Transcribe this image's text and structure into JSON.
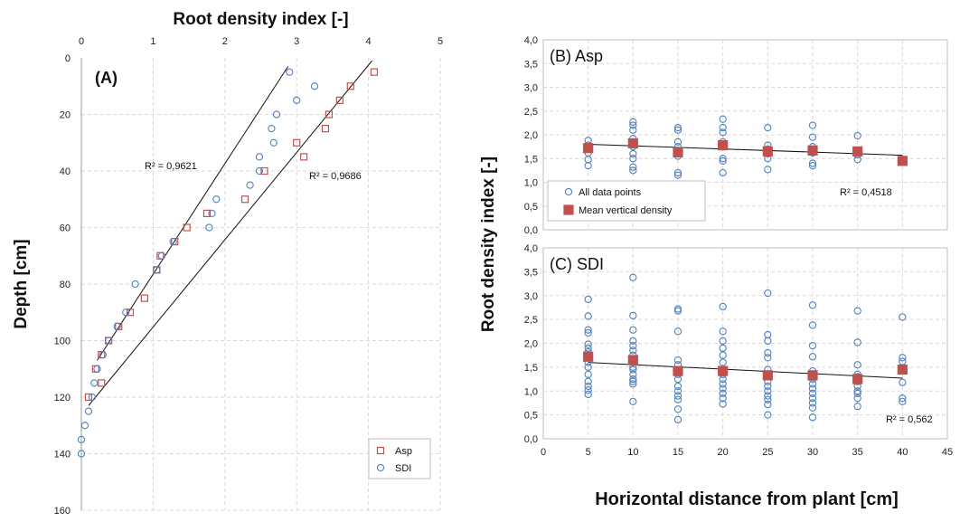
{
  "chart_data": [
    {
      "id": "A",
      "type": "scatter",
      "panel_label": "(A)",
      "xlabel": "Root density index [-]",
      "ylabel": "Depth [cm]",
      "xlim": [
        0,
        5
      ],
      "ylim": [
        0,
        160
      ],
      "y_inverted": true,
      "x_axis_position": "top",
      "x_ticks": [
        0,
        1,
        2,
        3,
        4,
        5
      ],
      "y_ticks": [
        0,
        20,
        40,
        60,
        80,
        100,
        120,
        140,
        160
      ],
      "grid": true,
      "legend_position": "bottom-right",
      "series": [
        {
          "name": "Asp",
          "marker": "square",
          "color": "#c0504d",
          "x": [
            4.08,
            3.75,
            3.6,
            3.45,
            3.4,
            3.1,
            3.0,
            2.55,
            2.28,
            1.47,
            1.75,
            1.3,
            1.1,
            1.05,
            0.88,
            0.68,
            0.52,
            0.38,
            0.28,
            0.2,
            0.28,
            0.1
          ],
          "y": [
            5,
            10,
            15,
            20,
            25,
            35,
            30,
            40,
            50,
            60,
            55,
            65,
            70,
            75,
            85,
            90,
            95,
            100,
            105,
            110,
            115,
            120
          ],
          "trend": {
            "x0": 0.1,
            "y0": 123,
            "x1": 4.05,
            "y1": 1
          },
          "r2": "R² = 0,9686"
        },
        {
          "name": "SDI",
          "marker": "circle",
          "color": "#4f81bd",
          "x": [
            2.9,
            3.25,
            3.0,
            2.72,
            2.65,
            2.68,
            2.48,
            2.48,
            2.35,
            1.88,
            1.82,
            1.78,
            1.28,
            1.12,
            1.05,
            0.75,
            0.62,
            0.5,
            0.38,
            0.3,
            0.22,
            0.18,
            0.15,
            0.1,
            0.05,
            0.0,
            0.0
          ],
          "y": [
            5,
            10,
            15,
            20,
            25,
            30,
            35,
            40,
            45,
            50,
            55,
            60,
            65,
            70,
            75,
            80,
            90,
            95,
            100,
            105,
            110,
            115,
            120,
            125,
            130,
            135,
            140
          ],
          "trend": {
            "x0": 0.22,
            "y0": 107,
            "x1": 2.88,
            "y1": 3
          },
          "r2": "R² = 0,9621"
        }
      ]
    },
    {
      "id": "B",
      "type": "scatter",
      "panel_label": "(B) Asp",
      "xlim": [
        0,
        45
      ],
      "ylim": [
        0,
        4
      ],
      "x_ticks": [
        0,
        5,
        10,
        15,
        20,
        25,
        30,
        35,
        40,
        45
      ],
      "y_ticks": [
        "0,0",
        "0,5",
        "1,0",
        "1,5",
        "2,0",
        "2,5",
        "3,0",
        "3,5",
        "4,0"
      ],
      "grid": true,
      "legend_position": "bottom-left",
      "series": [
        {
          "name": "All data points",
          "marker": "circle-open",
          "color": "#4f81bd",
          "points": [
            [
              5,
              1.88
            ],
            [
              5,
              1.78
            ],
            [
              5,
              1.62
            ],
            [
              5,
              1.48
            ],
            [
              5,
              1.35
            ],
            [
              10,
              2.27
            ],
            [
              10,
              2.2
            ],
            [
              10,
              2.1
            ],
            [
              10,
              1.92
            ],
            [
              10,
              1.85
            ],
            [
              10,
              1.75
            ],
            [
              10,
              1.6
            ],
            [
              10,
              1.5
            ],
            [
              10,
              1.32
            ],
            [
              10,
              1.25
            ],
            [
              15,
              2.15
            ],
            [
              15,
              2.1
            ],
            [
              15,
              1.85
            ],
            [
              15,
              1.75
            ],
            [
              15,
              1.65
            ],
            [
              15,
              1.55
            ],
            [
              15,
              1.2
            ],
            [
              15,
              1.15
            ],
            [
              20,
              2.33
            ],
            [
              20,
              2.15
            ],
            [
              20,
              2.05
            ],
            [
              20,
              1.85
            ],
            [
              20,
              1.75
            ],
            [
              20,
              1.5
            ],
            [
              20,
              1.45
            ],
            [
              20,
              1.2
            ],
            [
              25,
              2.15
            ],
            [
              25,
              1.78
            ],
            [
              25,
              1.7
            ],
            [
              25,
              1.6
            ],
            [
              25,
              1.5
            ],
            [
              25,
              1.27
            ],
            [
              30,
              2.2
            ],
            [
              30,
              1.95
            ],
            [
              30,
              1.75
            ],
            [
              30,
              1.7
            ],
            [
              30,
              1.62
            ],
            [
              30,
              1.4
            ],
            [
              30,
              1.35
            ],
            [
              35,
              1.98
            ],
            [
              35,
              1.65
            ],
            [
              35,
              1.58
            ],
            [
              35,
              1.48
            ],
            [
              40,
              1.48
            ],
            [
              40,
              1.42
            ]
          ]
        },
        {
          "name": "Mean vertical density",
          "marker": "square-filled",
          "color": "#c0504d",
          "points": [
            [
              5,
              1.72
            ],
            [
              10,
              1.82
            ],
            [
              15,
              1.63
            ],
            [
              20,
              1.78
            ],
            [
              25,
              1.65
            ],
            [
              30,
              1.67
            ],
            [
              35,
              1.65
            ],
            [
              40,
              1.45
            ]
          ]
        }
      ],
      "trend": {
        "x0": 5,
        "y0": 1.8,
        "x1": 40,
        "y1": 1.57
      },
      "r2": "R² = 0,4518"
    },
    {
      "id": "C",
      "type": "scatter",
      "panel_label": "(C) SDI",
      "xlabel": "Horizontal distance from plant [cm]",
      "xlim": [
        0,
        45
      ],
      "ylim": [
        0,
        4
      ],
      "x_ticks": [
        0,
        5,
        10,
        15,
        20,
        25,
        30,
        35,
        40,
        45
      ],
      "y_ticks": [
        "0,0",
        "0,5",
        "1,0",
        "1,5",
        "2,0",
        "2,5",
        "3,0",
        "3,5",
        "4,0"
      ],
      "grid": true,
      "series": [
        {
          "name": "All data points",
          "marker": "circle-open",
          "color": "#4f81bd",
          "points": [
            [
              5,
              2.92
            ],
            [
              5,
              2.57
            ],
            [
              5,
              2.28
            ],
            [
              5,
              2.22
            ],
            [
              5,
              1.98
            ],
            [
              5,
              1.9
            ],
            [
              5,
              1.82
            ],
            [
              5,
              1.75
            ],
            [
              5,
              1.6
            ],
            [
              5,
              1.5
            ],
            [
              5,
              1.35
            ],
            [
              5,
              1.2
            ],
            [
              5,
              1.1
            ],
            [
              5,
              1.02
            ],
            [
              5,
              0.93
            ],
            [
              10,
              3.38
            ],
            [
              10,
              2.58
            ],
            [
              10,
              2.28
            ],
            [
              10,
              2.05
            ],
            [
              10,
              1.95
            ],
            [
              10,
              1.85
            ],
            [
              10,
              1.75
            ],
            [
              10,
              1.6
            ],
            [
              10,
              1.5
            ],
            [
              10,
              1.45
            ],
            [
              10,
              1.35
            ],
            [
              10,
              1.25
            ],
            [
              10,
              1.2
            ],
            [
              10,
              1.15
            ],
            [
              10,
              0.78
            ],
            [
              15,
              2.72
            ],
            [
              15,
              2.68
            ],
            [
              15,
              2.25
            ],
            [
              15,
              1.65
            ],
            [
              15,
              1.55
            ],
            [
              15,
              1.45
            ],
            [
              15,
              1.35
            ],
            [
              15,
              1.25
            ],
            [
              15,
              1.1
            ],
            [
              15,
              1.0
            ],
            [
              15,
              0.9
            ],
            [
              15,
              0.82
            ],
            [
              15,
              0.62
            ],
            [
              15,
              0.4
            ],
            [
              20,
              2.77
            ],
            [
              20,
              2.25
            ],
            [
              20,
              2.05
            ],
            [
              20,
              1.9
            ],
            [
              20,
              1.75
            ],
            [
              20,
              1.6
            ],
            [
              20,
              1.45
            ],
            [
              20,
              1.35
            ],
            [
              20,
              1.25
            ],
            [
              20,
              1.15
            ],
            [
              20,
              1.05
            ],
            [
              20,
              0.95
            ],
            [
              20,
              0.85
            ],
            [
              20,
              0.73
            ],
            [
              25,
              3.05
            ],
            [
              25,
              2.18
            ],
            [
              25,
              2.05
            ],
            [
              25,
              1.8
            ],
            [
              25,
              1.7
            ],
            [
              25,
              1.45
            ],
            [
              25,
              1.3
            ],
            [
              25,
              1.2
            ],
            [
              25,
              1.1
            ],
            [
              25,
              1.0
            ],
            [
              25,
              0.9
            ],
            [
              25,
              0.82
            ],
            [
              25,
              0.72
            ],
            [
              25,
              0.5
            ],
            [
              30,
              2.8
            ],
            [
              30,
              2.38
            ],
            [
              30,
              1.95
            ],
            [
              30,
              1.72
            ],
            [
              30,
              1.42
            ],
            [
              30,
              1.35
            ],
            [
              30,
              1.25
            ],
            [
              30,
              1.15
            ],
            [
              30,
              1.05
            ],
            [
              30,
              0.95
            ],
            [
              30,
              0.85
            ],
            [
              30,
              0.75
            ],
            [
              30,
              0.65
            ],
            [
              30,
              0.45
            ],
            [
              35,
              2.68
            ],
            [
              35,
              2.02
            ],
            [
              35,
              1.55
            ],
            [
              35,
              1.35
            ],
            [
              35,
              1.3
            ],
            [
              35,
              1.2
            ],
            [
              35,
              1.1
            ],
            [
              35,
              1.0
            ],
            [
              35,
              0.95
            ],
            [
              35,
              0.85
            ],
            [
              35,
              0.68
            ],
            [
              40,
              2.55
            ],
            [
              40,
              1.7
            ],
            [
              40,
              1.62
            ],
            [
              40,
              1.18
            ],
            [
              40,
              0.85
            ],
            [
              40,
              0.78
            ]
          ]
        },
        {
          "name": "Mean vertical density",
          "marker": "square-filled",
          "color": "#c0504d",
          "points": [
            [
              5,
              1.72
            ],
            [
              10,
              1.65
            ],
            [
              15,
              1.42
            ],
            [
              20,
              1.42
            ],
            [
              25,
              1.33
            ],
            [
              30,
              1.33
            ],
            [
              35,
              1.25
            ],
            [
              40,
              1.45
            ]
          ]
        }
      ],
      "trend": {
        "x0": 5,
        "y0": 1.6,
        "x1": 40,
        "y1": 1.27
      },
      "r2": "R² = 0,562"
    }
  ],
  "shared": {
    "right_ylabel": "Root density index [-]"
  }
}
